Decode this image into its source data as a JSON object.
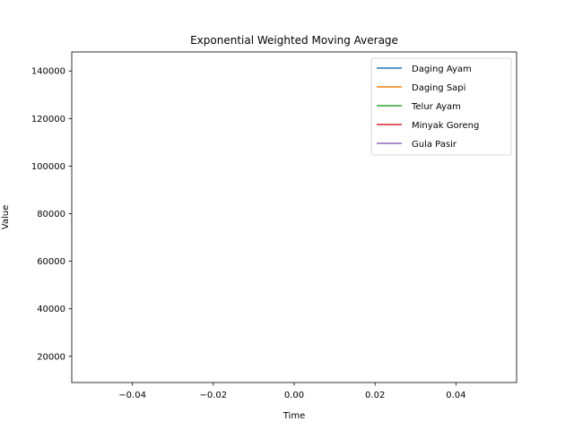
{
  "chart_data": {
    "type": "line",
    "title": "Exponential Weighted Moving Average",
    "xlabel": "Time",
    "ylabel": "Value",
    "xlim": [
      -0.055,
      0.055
    ],
    "ylim": [
      9000,
      148000
    ],
    "xticks": [
      -0.04,
      -0.02,
      0.0,
      0.02,
      0.04
    ],
    "xtick_labels": [
      "−0.04",
      "−0.02",
      "0.00",
      "0.02",
      "0.04"
    ],
    "yticks": [
      20000,
      40000,
      60000,
      80000,
      100000,
      120000,
      140000
    ],
    "ytick_labels": [
      "20000",
      "40000",
      "60000",
      "80000",
      "100000",
      "120000",
      "140000"
    ],
    "legend_position": "top-right",
    "grid": false,
    "series": [
      {
        "name": "Daging Ayam",
        "color": "#1f77b4",
        "x": [],
        "y": []
      },
      {
        "name": "Daging Sapi",
        "color": "#ff7f0e",
        "x": [],
        "y": []
      },
      {
        "name": "Telur Ayam",
        "color": "#2ca02c",
        "x": [],
        "y": []
      },
      {
        "name": "Minyak Goreng",
        "color": "#d62728",
        "x": [],
        "y": []
      },
      {
        "name": "Gula Pasir",
        "color": "#9467bd",
        "x": [],
        "y": []
      }
    ]
  }
}
